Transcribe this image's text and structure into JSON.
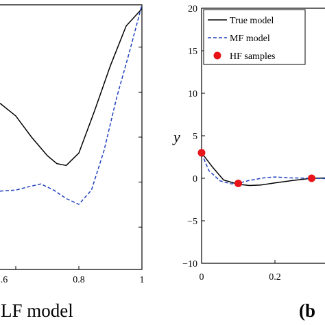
{
  "chart_data": [
    {
      "type": "line",
      "panel": "left",
      "caption": "LF model",
      "x_tick_labels": [
        ".6",
        "0.8",
        "1"
      ],
      "xlim": [
        0.55,
        1.0
      ],
      "ylim": [
        0,
        1
      ],
      "grid": false,
      "series": [
        {
          "style": "solid",
          "color": "#000000",
          "points": [
            [
              0.55,
              0.628
            ],
            [
              0.6,
              0.58
            ],
            [
              0.65,
              0.5
            ],
            [
              0.7,
              0.43
            ],
            [
              0.73,
              0.4
            ],
            [
              0.76,
              0.393
            ],
            [
              0.8,
              0.44
            ],
            [
              0.85,
              0.6
            ],
            [
              0.9,
              0.77
            ],
            [
              0.95,
              0.92
            ],
            [
              1.0,
              0.985
            ]
          ]
        },
        {
          "style": "dashed",
          "color": "#1f3fbf",
          "points": [
            [
              0.55,
              0.296
            ],
            [
              0.6,
              0.3
            ],
            [
              0.65,
              0.315
            ],
            [
              0.68,
              0.323
            ],
            [
              0.72,
              0.3
            ],
            [
              0.76,
              0.268
            ],
            [
              0.8,
              0.246
            ],
            [
              0.84,
              0.3
            ],
            [
              0.88,
              0.45
            ],
            [
              0.92,
              0.65
            ],
            [
              0.96,
              0.82
            ],
            [
              1.0,
              1.0
            ]
          ]
        }
      ]
    },
    {
      "type": "line",
      "panel": "right",
      "caption": "(b",
      "ylabel": "y",
      "xlim": [
        0,
        0.5
      ],
      "ylim": [
        -10,
        20
      ],
      "x_ticks": [
        0,
        0.2
      ],
      "x_tick_labels": [
        "0",
        "0.2"
      ],
      "y_ticks": [
        20,
        15,
        10,
        5,
        0,
        -5,
        -10
      ],
      "y_tick_labels": [
        "20",
        "15",
        "10",
        "5",
        "0",
        "−5",
        "−10"
      ],
      "grid": false,
      "legend": {
        "position": "top-left",
        "entries": [
          "True model",
          "MF model",
          "HF samples"
        ]
      },
      "series": [
        {
          "name": "True model",
          "style": "solid",
          "color": "#000000",
          "points": [
            [
              0,
              3.0
            ],
            [
              0.03,
              1.3
            ],
            [
              0.06,
              -0.2
            ],
            [
              0.1,
              -0.7
            ],
            [
              0.13,
              -0.85
            ],
            [
              0.16,
              -0.8
            ],
            [
              0.2,
              -0.55
            ],
            [
              0.25,
              -0.25
            ],
            [
              0.3,
              0.0
            ],
            [
              0.35,
              0.05
            ]
          ]
        },
        {
          "name": "MF model",
          "style": "dashed",
          "color": "#1f3fbf",
          "points": [
            [
              0,
              2.9
            ],
            [
              0.02,
              0.9
            ],
            [
              0.05,
              -0.3
            ],
            [
              0.08,
              -0.65
            ],
            [
              0.1,
              -0.6
            ],
            [
              0.13,
              -0.25
            ],
            [
              0.17,
              0.05
            ],
            [
              0.2,
              0.15
            ],
            [
              0.24,
              0.05
            ],
            [
              0.3,
              0.0
            ],
            [
              0.35,
              -0.05
            ]
          ]
        },
        {
          "name": "HF samples",
          "style": "marker",
          "color": "#e8141a",
          "points": [
            [
              0,
              3.0
            ],
            [
              0.1,
              -0.6
            ],
            [
              0.3,
              0.0
            ]
          ]
        }
      ]
    }
  ]
}
